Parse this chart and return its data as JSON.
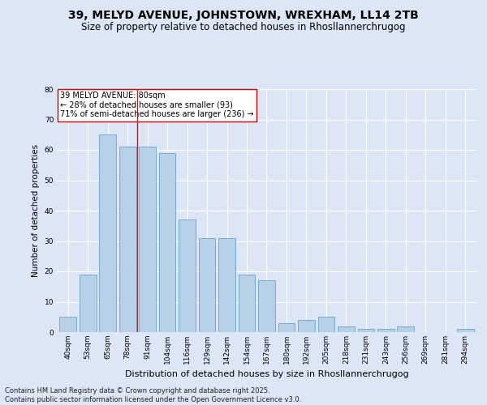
{
  "title": "39, MELYD AVENUE, JOHNSTOWN, WREXHAM, LL14 2TB",
  "subtitle": "Size of property relative to detached houses in Rhosllannerchrugog",
  "xlabel": "Distribution of detached houses by size in Rhosllannerchrugog",
  "ylabel": "Number of detached properties",
  "categories": [
    "40sqm",
    "53sqm",
    "65sqm",
    "78sqm",
    "91sqm",
    "104sqm",
    "116sqm",
    "129sqm",
    "142sqm",
    "154sqm",
    "167sqm",
    "180sqm",
    "192sqm",
    "205sqm",
    "218sqm",
    "231sqm",
    "243sqm",
    "256sqm",
    "269sqm",
    "281sqm",
    "294sqm"
  ],
  "values": [
    5,
    19,
    65,
    61,
    61,
    59,
    37,
    31,
    31,
    19,
    17,
    3,
    4,
    5,
    2,
    1,
    1,
    2,
    0,
    0,
    1
  ],
  "bar_color": "#b8cfe8",
  "bar_edge_color": "#7aaad0",
  "red_line_x": 3.5,
  "ylim": [
    0,
    80
  ],
  "yticks": [
    0,
    10,
    20,
    30,
    40,
    50,
    60,
    70,
    80
  ],
  "annotation_text": "39 MELYD AVENUE: 80sqm\n← 28% of detached houses are smaller (93)\n71% of semi-detached houses are larger (236) →",
  "background_color": "#dce6f5",
  "plot_bg_color": "#dce6f5",
  "footer": "Contains HM Land Registry data © Crown copyright and database right 2025.\nContains public sector information licensed under the Open Government Licence v3.0.",
  "title_fontsize": 10,
  "subtitle_fontsize": 8.5,
  "xlabel_fontsize": 8,
  "ylabel_fontsize": 7.5,
  "tick_fontsize": 6.5,
  "footer_fontsize": 6,
  "annot_fontsize": 7
}
